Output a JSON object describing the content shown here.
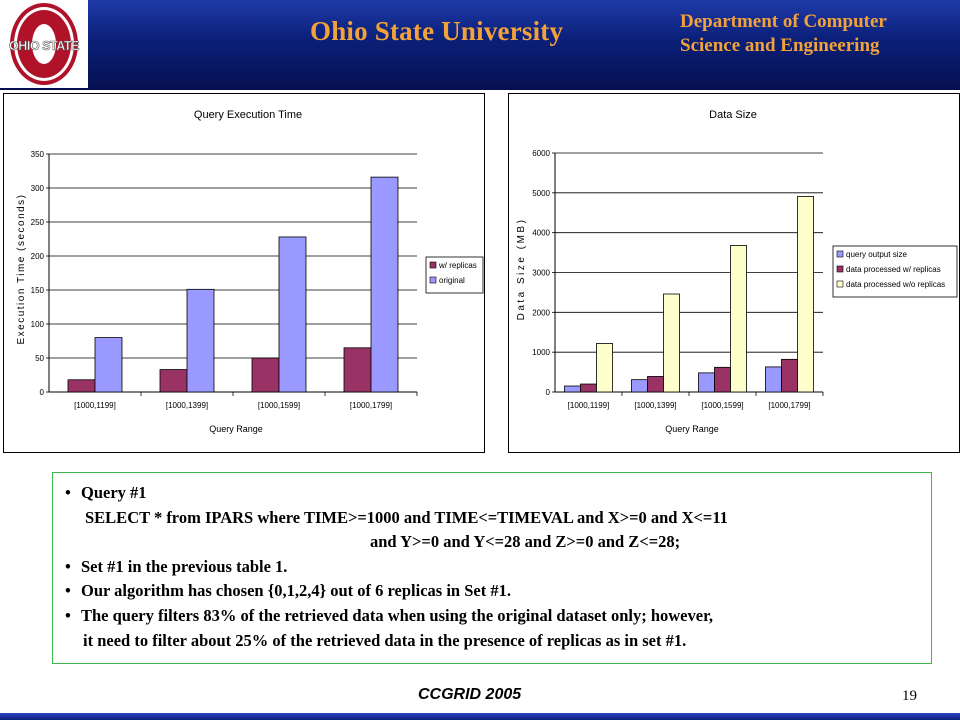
{
  "header": {
    "logo_text": "OHIO STATE",
    "university": "Ohio State University",
    "department_line1": "Department of Computer",
    "department_line2": "Science and Engineering"
  },
  "colors": {
    "header_blue": "#0a1f78",
    "header_text": "#f2a23a",
    "logo_red": "#b0122a",
    "wreplicas": "#993366",
    "original": "#9999ff",
    "query_output": "#9999ff",
    "processed_w": "#993366",
    "processed_wo": "#ffffcc",
    "box_border": "#3fb54a"
  },
  "chart_data": [
    {
      "type": "bar",
      "title": "Query Execution Time",
      "xlabel": "Query Range",
      "ylabel": "Execution Time (seconds)",
      "ylim": [
        0,
        350
      ],
      "yticks": [
        0,
        50,
        100,
        150,
        200,
        250,
        300,
        350
      ],
      "categories": [
        "[1000,1199]",
        "[1000,1399]",
        "[1000,1599]",
        "[1000,1799]"
      ],
      "series": [
        {
          "name": "w/ replicas",
          "values": [
            18,
            33,
            50,
            65
          ]
        },
        {
          "name": "original",
          "values": [
            80,
            151,
            228,
            316
          ]
        }
      ],
      "legend": "right",
      "grid": true
    },
    {
      "type": "bar",
      "title": "Data Size",
      "xlabel": "Query Range",
      "ylabel": "Data Size (MB)",
      "ylim": [
        0,
        6000
      ],
      "yticks": [
        0,
        1000,
        2000,
        3000,
        4000,
        5000,
        6000
      ],
      "categories": [
        "[1000,1199]",
        "[1000,1399]",
        "[1000,1599]",
        "[1000,1799]"
      ],
      "series": [
        {
          "name": "query output size",
          "values": [
            150,
            310,
            480,
            630
          ]
        },
        {
          "name": "data processed w/ replicas",
          "values": [
            200,
            390,
            620,
            820
          ]
        },
        {
          "name": "data processed w/o replicas",
          "values": [
            1220,
            2460,
            3680,
            4910
          ]
        }
      ],
      "legend": "right",
      "grid": true
    }
  ],
  "content": {
    "bullet": "•",
    "item1_label": "Query #1",
    "item1_sql_line1": "SELECT * from IPARS where TIME>=1000 and TIME<=TIMEVAL and X>=0 and X<=11",
    "item1_sql_line2": "and Y>=0 and Y<=28 and Z>=0 and Z<=28;",
    "item2": "Set #1 in the previous table 1.",
    "item3": "Our algorithm has chosen {0,1,2,4} out of 6 replicas in Set #1.",
    "item4_line1": "The query filters 83% of the retrieved data when using the original dataset only; however,",
    "item4_line2": "it need to filter about 25% of the retrieved data in the presence of replicas as in set #1."
  },
  "footer": {
    "conference": "CCGRID 2005",
    "page_number": "19"
  }
}
